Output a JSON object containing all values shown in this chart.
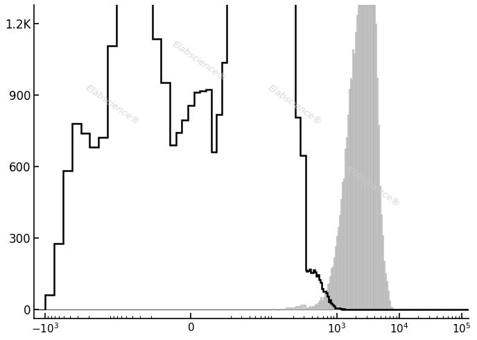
{
  "title": "",
  "ylabel": "",
  "xlabel": "",
  "ylim": [
    -40,
    1280
  ],
  "yticks": [
    0,
    300,
    600,
    900,
    1200
  ],
  "ytick_labels": [
    "0",
    "300",
    "600",
    "900",
    "1.2K"
  ],
  "background_color": "#ffffff",
  "watermark_color": "#cccccc",
  "black_hist_color": "#000000",
  "gray_hist_color": "#c8c8c8",
  "gray_hist_edge_color": "#aaaaaa",
  "figsize": [
    6.88,
    4.9
  ],
  "dpi": 100,
  "xlim_left": -1500,
  "xlim_right": 130000,
  "linthresh": 10,
  "linscale": 0.3
}
